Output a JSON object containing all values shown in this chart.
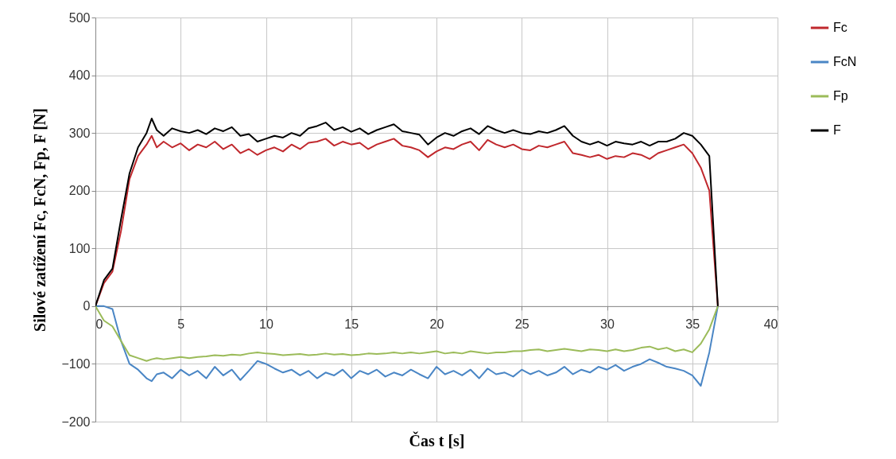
{
  "chart_data": {
    "type": "line",
    "xlabel": "Čas t [s]",
    "ylabel": "Silové zatížení Fc, FcN, Fp, F [N]",
    "x": [
      0,
      0.5,
      1,
      1.5,
      2,
      2.5,
      3,
      3.3,
      3.6,
      4,
      4.5,
      5,
      5.5,
      6,
      6.5,
      7,
      7.5,
      8,
      8.5,
      9,
      9.5,
      10,
      10.5,
      11,
      11.5,
      12,
      12.5,
      13,
      13.5,
      14,
      14.5,
      15,
      15.5,
      16,
      16.5,
      17,
      17.5,
      18,
      18.5,
      19,
      19.5,
      20,
      20.5,
      21,
      21.5,
      22,
      22.5,
      23,
      23.5,
      24,
      24.5,
      25,
      25.5,
      26,
      26.5,
      27,
      27.5,
      28,
      28.5,
      29,
      29.5,
      30,
      30.5,
      31,
      31.5,
      32,
      32.5,
      33,
      33.5,
      34,
      34.5,
      35,
      35.5,
      36,
      36.5
    ],
    "series": [
      {
        "name": "Fc",
        "color": "#c0282d",
        "values": [
          0,
          40,
          60,
          130,
          220,
          260,
          280,
          295,
          275,
          285,
          275,
          282,
          270,
          280,
          275,
          285,
          272,
          280,
          265,
          272,
          262,
          270,
          275,
          268,
          280,
          272,
          283,
          285,
          290,
          278,
          285,
          280,
          283,
          272,
          280,
          285,
          290,
          278,
          275,
          270,
          258,
          268,
          275,
          272,
          280,
          285,
          270,
          288,
          280,
          275,
          280,
          272,
          270,
          278,
          275,
          280,
          285,
          265,
          262,
          258,
          262,
          255,
          260,
          258,
          265,
          262,
          255,
          265,
          270,
          275,
          280,
          265,
          240,
          200,
          0
        ]
      },
      {
        "name": "FcN",
        "color": "#4a86c5",
        "values": [
          0,
          0,
          -5,
          -60,
          -100,
          -110,
          -125,
          -130,
          -118,
          -115,
          -125,
          -110,
          -120,
          -112,
          -125,
          -105,
          -120,
          -110,
          -128,
          -112,
          -95,
          -100,
          -108,
          -115,
          -110,
          -120,
          -112,
          -125,
          -115,
          -120,
          -110,
          -125,
          -112,
          -118,
          -110,
          -122,
          -115,
          -120,
          -110,
          -118,
          -125,
          -105,
          -118,
          -112,
          -120,
          -110,
          -125,
          -108,
          -118,
          -115,
          -122,
          -110,
          -118,
          -112,
          -120,
          -115,
          -105,
          -118,
          -110,
          -115,
          -105,
          -110,
          -102,
          -112,
          -105,
          -100,
          -92,
          -98,
          -105,
          -108,
          -112,
          -120,
          -138,
          -80,
          0
        ]
      },
      {
        "name": "Fp",
        "color": "#9bbb59",
        "values": [
          0,
          -25,
          -35,
          -60,
          -85,
          -90,
          -95,
          -92,
          -90,
          -92,
          -90,
          -88,
          -90,
          -88,
          -87,
          -85,
          -86,
          -84,
          -85,
          -82,
          -80,
          -82,
          -83,
          -85,
          -84,
          -83,
          -85,
          -84,
          -82,
          -84,
          -83,
          -85,
          -84,
          -82,
          -83,
          -82,
          -80,
          -82,
          -80,
          -82,
          -80,
          -78,
          -82,
          -80,
          -82,
          -78,
          -80,
          -82,
          -80,
          -80,
          -78,
          -78,
          -76,
          -75,
          -78,
          -76,
          -74,
          -76,
          -78,
          -75,
          -76,
          -78,
          -75,
          -78,
          -76,
          -72,
          -70,
          -75,
          -72,
          -78,
          -75,
          -80,
          -65,
          -40,
          0
        ]
      },
      {
        "name": "F",
        "color": "#000000",
        "values": [
          0,
          45,
          65,
          150,
          230,
          275,
          300,
          325,
          305,
          295,
          308,
          303,
          300,
          305,
          298,
          308,
          303,
          310,
          295,
          298,
          285,
          290,
          295,
          292,
          300,
          295,
          308,
          312,
          318,
          305,
          310,
          302,
          308,
          298,
          305,
          310,
          315,
          303,
          300,
          297,
          280,
          292,
          300,
          295,
          303,
          308,
          298,
          312,
          305,
          300,
          305,
          300,
          298,
          303,
          300,
          305,
          312,
          295,
          285,
          280,
          285,
          278,
          285,
          282,
          280,
          285,
          278,
          285,
          285,
          290,
          300,
          295,
          280,
          260,
          0
        ]
      }
    ],
    "xlim": [
      0,
      40
    ],
    "xticks": [
      0,
      5,
      10,
      15,
      20,
      25,
      30,
      35,
      40
    ],
    "ylim": [
      -200,
      500
    ],
    "yticks": [
      -200,
      -100,
      0,
      100,
      200,
      300,
      400,
      500
    ],
    "grid": true,
    "legend": "right",
    "line_style": "solid"
  }
}
